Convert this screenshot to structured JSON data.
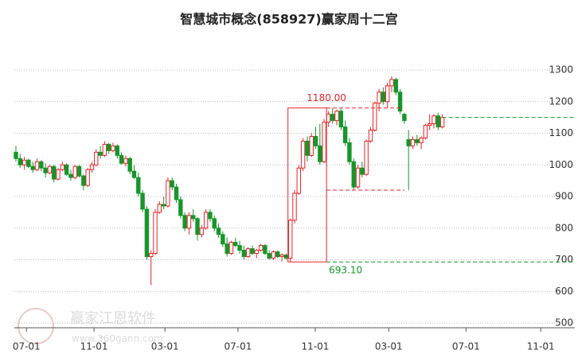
{
  "chart_data": {
    "type": "candlestick",
    "title": "智慧城市概念(858927)赢家周十二宫",
    "watermark": [
      "赢家江恩软件",
      "www.360gann.com"
    ],
    "up_color": "#e8242a",
    "down_color": "#16962a",
    "ylim": [
      500,
      1300
    ],
    "yticks": [
      500,
      600,
      700,
      800,
      900,
      1000,
      1100,
      1200,
      1300
    ],
    "grid": true,
    "xlim": [
      0,
      132
    ],
    "xticks": [
      {
        "value": 2.5,
        "label": "07-01"
      },
      {
        "value": 18.5,
        "label": "11-01"
      },
      {
        "value": 35.3,
        "label": "03-01"
      },
      {
        "value": 52.6,
        "label": "07-01"
      },
      {
        "value": 70.9,
        "label": "11-01"
      },
      {
        "value": 88.3,
        "label": "03-01"
      },
      {
        "value": 106.6,
        "label": "07-01"
      },
      {
        "value": 124.3,
        "label": "11-01"
      }
    ],
    "annotations": [
      {
        "label": "1180.00",
        "value": 1180,
        "color": "#e8242a"
      },
      {
        "label": "693.10",
        "value": 693.1,
        "color": "#16962a"
      }
    ],
    "lines": [
      {
        "value": 920,
        "color": "#e8242a"
      }
    ],
    "ohlc": [
      [
        1040,
        1060,
        1010,
        1020
      ],
      [
        1020,
        1035,
        990,
        1000
      ],
      [
        1000,
        1025,
        985,
        1015
      ],
      [
        1015,
        1020,
        990,
        995
      ],
      [
        995,
        1010,
        975,
        985
      ],
      [
        985,
        1020,
        980,
        1010
      ],
      [
        1010,
        1015,
        980,
        990
      ],
      [
        990,
        1005,
        960,
        975
      ],
      [
        975,
        1000,
        970,
        995
      ],
      [
        995,
        1000,
        945,
        955
      ],
      [
        955,
        990,
        950,
        985
      ],
      [
        985,
        1010,
        980,
        1000
      ],
      [
        1000,
        1005,
        965,
        970
      ],
      [
        970,
        985,
        950,
        960
      ],
      [
        960,
        1000,
        955,
        995
      ],
      [
        995,
        1000,
        960,
        965
      ],
      [
        965,
        970,
        920,
        935
      ],
      [
        935,
        990,
        930,
        985
      ],
      [
        985,
        1010,
        975,
        1000
      ],
      [
        1000,
        1050,
        995,
        1040
      ],
      [
        1040,
        1060,
        1020,
        1030
      ],
      [
        1030,
        1075,
        1025,
        1065
      ],
      [
        1065,
        1070,
        1035,
        1045
      ],
      [
        1045,
        1070,
        1040,
        1060
      ],
      [
        1060,
        1065,
        1020,
        1030
      ],
      [
        1030,
        1040,
        1000,
        1005
      ],
      [
        1005,
        1030,
        995,
        1020
      ],
      [
        1020,
        1025,
        970,
        980
      ],
      [
        980,
        1000,
        955,
        960
      ],
      [
        960,
        975,
        900,
        910
      ],
      [
        910,
        920,
        850,
        860
      ],
      [
        860,
        870,
        700,
        710
      ],
      [
        710,
        730,
        620,
        720
      ],
      [
        720,
        860,
        715,
        850
      ],
      [
        850,
        885,
        845,
        875
      ],
      [
        875,
        900,
        860,
        870
      ],
      [
        870,
        960,
        865,
        950
      ],
      [
        950,
        960,
        920,
        930
      ],
      [
        930,
        940,
        880,
        890
      ],
      [
        890,
        900,
        830,
        840
      ],
      [
        840,
        850,
        790,
        800
      ],
      [
        800,
        850,
        780,
        840
      ],
      [
        840,
        860,
        820,
        830
      ],
      [
        830,
        835,
        760,
        780
      ],
      [
        780,
        810,
        770,
        800
      ],
      [
        800,
        860,
        795,
        850
      ],
      [
        850,
        860,
        820,
        830
      ],
      [
        830,
        840,
        790,
        800
      ],
      [
        800,
        815,
        770,
        780
      ],
      [
        780,
        790,
        740,
        750
      ],
      [
        750,
        770,
        710,
        720
      ],
      [
        720,
        760,
        715,
        755
      ],
      [
        755,
        770,
        740,
        745
      ],
      [
        745,
        760,
        720,
        730
      ],
      [
        730,
        745,
        700,
        710
      ],
      [
        710,
        740,
        705,
        735
      ],
      [
        735,
        745,
        715,
        720
      ],
      [
        720,
        735,
        705,
        730
      ],
      [
        730,
        750,
        725,
        745
      ],
      [
        745,
        750,
        715,
        720
      ],
      [
        720,
        730,
        700,
        705
      ],
      [
        705,
        730,
        700,
        725
      ],
      [
        725,
        730,
        705,
        710
      ],
      [
        710,
        720,
        695,
        715
      ],
      [
        715,
        720,
        700,
        705
      ],
      [
        705,
        830,
        693.1,
        825
      ],
      [
        825,
        920,
        815,
        910
      ],
      [
        910,
        1000,
        905,
        990
      ],
      [
        990,
        1085,
        980,
        1075
      ],
      [
        1075,
        1090,
        1010,
        1030
      ],
      [
        1030,
        1100,
        1025,
        1090
      ],
      [
        1090,
        1120,
        1050,
        1060
      ],
      [
        1060,
        1130,
        1000,
        1010
      ],
      [
        1010,
        1145,
        1005,
        1135
      ],
      [
        1135,
        1170,
        1120,
        1160
      ],
      [
        1160,
        1180,
        1130,
        1140
      ],
      [
        1140,
        1175,
        1125,
        1170
      ],
      [
        1170,
        1178,
        1110,
        1120
      ],
      [
        1120,
        1140,
        1060,
        1070
      ],
      [
        1070,
        1085,
        1000,
        1010
      ],
      [
        1010,
        1020,
        920,
        930
      ],
      [
        930,
        1000,
        925,
        990
      ],
      [
        990,
        1010,
        960,
        970
      ],
      [
        970,
        1080,
        965,
        1075
      ],
      [
        1075,
        1120,
        1070,
        1110
      ],
      [
        1110,
        1200,
        1105,
        1195
      ],
      [
        1195,
        1240,
        1170,
        1230
      ],
      [
        1230,
        1245,
        1190,
        1200
      ],
      [
        1200,
        1260,
        1180,
        1250
      ],
      [
        1250,
        1280,
        1230,
        1270
      ],
      [
        1270,
        1275,
        1220,
        1230
      ],
      [
        1230,
        1240,
        1160,
        1170
      ],
      [
        1160,
        1165,
        1130,
        1140
      ],
      [
        1080,
        1110,
        920,
        1060
      ],
      [
        1060,
        1090,
        1050,
        1080
      ],
      [
        1080,
        1095,
        1060,
        1070
      ],
      [
        1070,
        1090,
        1050,
        1085
      ],
      [
        1085,
        1130,
        1080,
        1125
      ],
      [
        1125,
        1160,
        1110,
        1130
      ],
      [
        1130,
        1160,
        1115,
        1155
      ],
      [
        1155,
        1165,
        1110,
        1120
      ],
      [
        1120,
        1160,
        1115,
        1150
      ]
    ]
  }
}
